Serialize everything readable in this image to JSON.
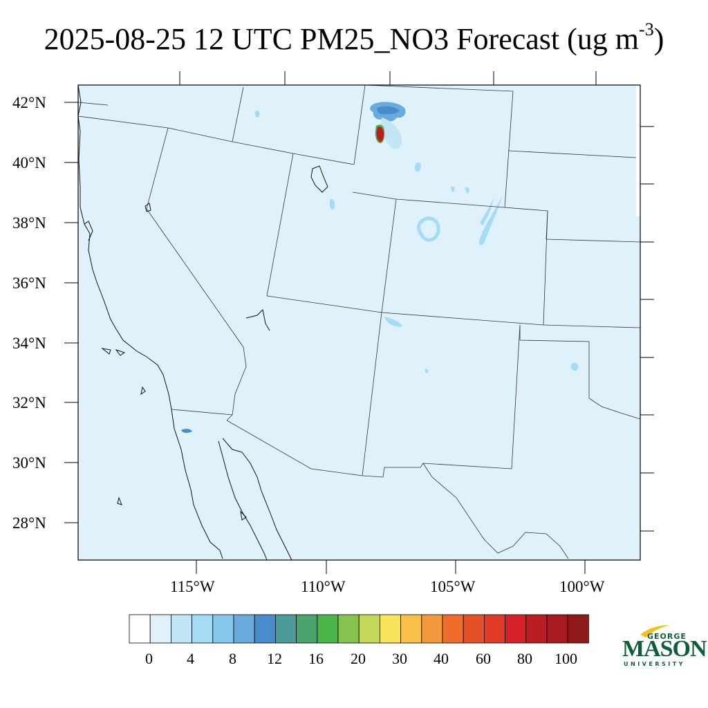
{
  "title": {
    "main": "2025-08-25 12 UTC PM25_NO3 Forecast (ug m",
    "sup": "-3",
    "close": ")"
  },
  "lat_labels": [
    "42°N",
    "40°N",
    "38°N",
    "36°N",
    "34°N",
    "32°N",
    "30°N",
    "28°N"
  ],
  "lon_labels": [
    "115°W",
    "110°W",
    "105°W",
    "100°W"
  ],
  "colorbar": {
    "colors": [
      "#ffffff",
      "#dff1fb",
      "#c3e6f7",
      "#a6dbf5",
      "#88c7ec",
      "#6aabdd",
      "#4a8ccb",
      "#4a9b9a",
      "#4aa46e",
      "#4bb54a",
      "#86c44f",
      "#c4d75a",
      "#f8e45a",
      "#f6c04b",
      "#f4983d",
      "#f06c2b",
      "#e55029",
      "#e13b27",
      "#d62128",
      "#bc1c24",
      "#a81a1f",
      "#8e1a1a"
    ],
    "labels": [
      "0",
      "4",
      "8",
      "12",
      "16",
      "20",
      "30",
      "40",
      "60",
      "80",
      "100"
    ]
  },
  "logo": {
    "line1": "GEORGE",
    "line2": "MASON",
    "line3": "UNIVERSITY"
  },
  "map": {
    "background_color": "#dff1fb",
    "line_color": "#333333"
  }
}
